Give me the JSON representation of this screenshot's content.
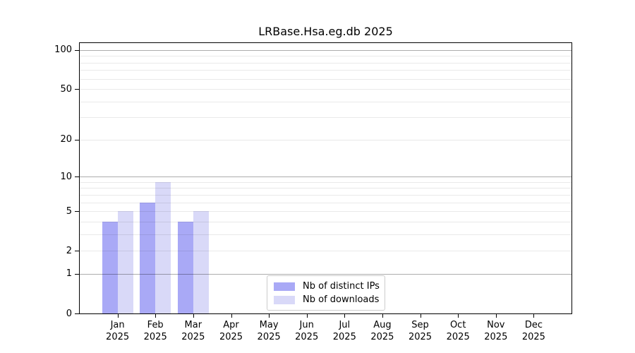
{
  "title": "LRBase.Hsa.eg.db 2025",
  "chart_data": {
    "type": "bar",
    "title": "LRBase.Hsa.eg.db 2025",
    "y_scale": "log1p",
    "categories": [
      "Jan 2025",
      "Feb 2025",
      "Mar 2025",
      "Apr 2025",
      "May 2025",
      "Jun 2025",
      "Jul 2025",
      "Aug 2025",
      "Sep 2025",
      "Oct 2025",
      "Nov 2025",
      "Dec 2025"
    ],
    "series": [
      {
        "name": "Nb of distinct IPs",
        "color": "#a9a9f6",
        "values": [
          4,
          6,
          4,
          0,
          0,
          0,
          0,
          0,
          0,
          0,
          0,
          0
        ]
      },
      {
        "name": "Nb of downloads",
        "color": "#d9d9f8",
        "values": [
          5,
          9,
          5,
          0,
          0,
          0,
          0,
          0,
          0,
          0,
          0,
          0
        ]
      }
    ],
    "yticks": [
      0,
      1,
      2,
      5,
      10,
      20,
      50,
      100
    ],
    "ylim": [
      0,
      113
    ],
    "grid": {
      "major_values": [
        1,
        10,
        100
      ],
      "minor_values": [
        2,
        3,
        4,
        5,
        6,
        7,
        8,
        9,
        20,
        30,
        40,
        50,
        60,
        70,
        80,
        90
      ],
      "major_color": "rgba(0,0,0,0.32)",
      "minor_color": "rgba(0,0,0,0.085)"
    },
    "legend_position": "inside-bottom-center",
    "axis_color": "#000000"
  }
}
